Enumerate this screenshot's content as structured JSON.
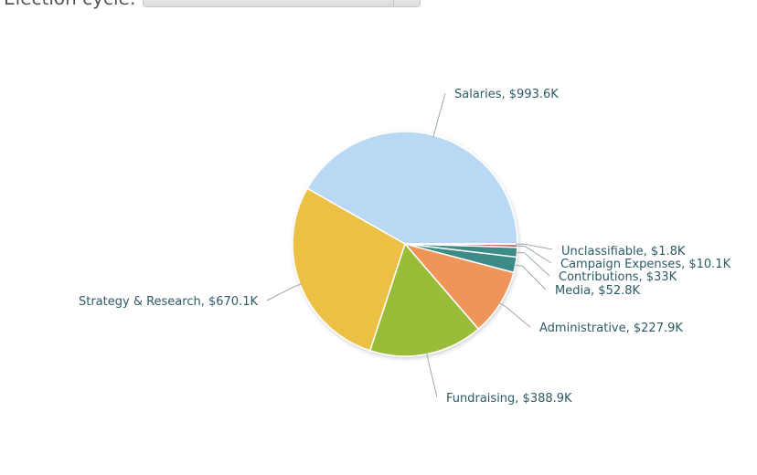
{
  "filter": {
    "label": "Election cycle:",
    "selected_value": ""
  },
  "chart_data": {
    "type": "pie",
    "title": "",
    "label_color": "#2d5a66",
    "connector_color": "#9aaab0",
    "slices": [
      {
        "name": "Salaries",
        "value_label": "$993.6K",
        "value": 993.6,
        "color": "#b8d8f4"
      },
      {
        "name": "Unclassifiable",
        "value_label": "$1.8K",
        "value": 1.8,
        "color": "#e0a6a6"
      },
      {
        "name": "Campaign Expenses",
        "value_label": "$10.1K",
        "value": 10.1,
        "color": "#c0444c"
      },
      {
        "name": "Contributions",
        "value_label": "$33K",
        "value": 33.0,
        "color": "#3d8b87"
      },
      {
        "name": "Media",
        "value_label": "$52.8K",
        "value": 52.8,
        "color": "#3d8b87"
      },
      {
        "name": "Administrative",
        "value_label": "$227.9K",
        "value": 227.9,
        "color": "#f0955a"
      },
      {
        "name": "Fundraising",
        "value_label": "$388.9K",
        "value": 388.9,
        "color": "#99bd38"
      },
      {
        "name": "Strategy & Research",
        "value_label": "$670.1K",
        "value": 670.1,
        "color": "#ecc044"
      }
    ]
  }
}
